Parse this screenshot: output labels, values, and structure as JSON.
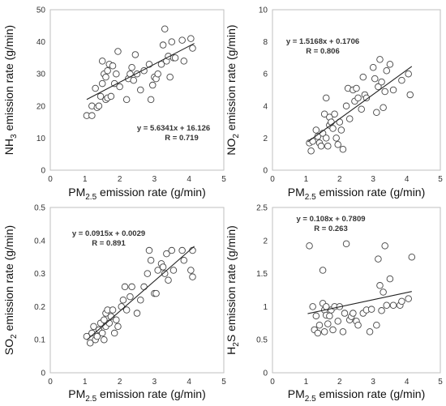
{
  "chart_data": [
    {
      "type": "scatter",
      "xlabel": "PM2.5 emission rate (g/min)",
      "ylabel": "NH3 emission rate (g/min)",
      "xlabel_parts": [
        "PM",
        "2.5",
        " emission rate (g/min)"
      ],
      "ylabel_parts": [
        "NH",
        "3",
        " emission rate (g/min)"
      ],
      "xlim": [
        0,
        5
      ],
      "ylim": [
        0,
        50
      ],
      "xticks": [
        0,
        1,
        2,
        3,
        4,
        5
      ],
      "yticks": [
        0,
        10,
        20,
        30,
        40,
        50
      ],
      "trendline": {
        "slope": 5.6341,
        "intercept": 16.126,
        "x_range": [
          1.05,
          4.15
        ]
      },
      "equation": "y = 5.6341x + 16.126",
      "r_label": "R = 0.719",
      "points": [
        [
          1.05,
          17
        ],
        [
          1.2,
          17
        ],
        [
          1.2,
          20
        ],
        [
          1.3,
          25.5
        ],
        [
          1.35,
          19.5
        ],
        [
          1.4,
          20
        ],
        [
          1.45,
          23
        ],
        [
          1.5,
          27
        ],
        [
          1.5,
          34
        ],
        [
          1.55,
          30
        ],
        [
          1.6,
          29
        ],
        [
          1.6,
          22
        ],
        [
          1.65,
          22.5
        ],
        [
          1.65,
          31
        ],
        [
          1.7,
          33
        ],
        [
          1.75,
          23
        ],
        [
          1.8,
          32.5
        ],
        [
          1.85,
          27
        ],
        [
          1.9,
          30
        ],
        [
          1.95,
          37
        ],
        [
          2.0,
          26
        ],
        [
          2.2,
          22
        ],
        [
          2.25,
          28.5
        ],
        [
          2.3,
          30
        ],
        [
          2.35,
          32
        ],
        [
          2.4,
          28
        ],
        [
          2.45,
          36
        ],
        [
          2.5,
          30
        ],
        [
          2.6,
          25
        ],
        [
          2.7,
          31
        ],
        [
          2.85,
          33
        ],
        [
          2.9,
          22
        ],
        [
          2.95,
          26.5
        ],
        [
          3.0,
          29
        ],
        [
          3.05,
          28.5
        ],
        [
          3.1,
          30
        ],
        [
          3.2,
          33
        ],
        [
          3.25,
          39
        ],
        [
          3.3,
          44
        ],
        [
          3.35,
          34
        ],
        [
          3.4,
          35.5
        ],
        [
          3.45,
          29
        ],
        [
          3.5,
          40
        ],
        [
          3.55,
          35
        ],
        [
          3.6,
          35
        ],
        [
          3.8,
          40.5
        ],
        [
          3.85,
          34
        ],
        [
          4.05,
          41
        ],
        [
          4.1,
          38
        ]
      ]
    },
    {
      "type": "scatter",
      "xlabel": "PM2.5 emission rate (g/min)",
      "ylabel": "NO2 emission rate (g/min)",
      "xlabel_parts": [
        "PM",
        "2.5",
        " emission rate (g/min)"
      ],
      "ylabel_parts": [
        "NO",
        "2",
        " emission rate (g/min)"
      ],
      "xlim": [
        0,
        5
      ],
      "ylim": [
        0,
        10
      ],
      "xticks": [
        0,
        1,
        2,
        3,
        4,
        5
      ],
      "yticks": [
        0,
        2,
        4,
        6,
        8,
        10
      ],
      "trendline": {
        "slope": 1.5168,
        "intercept": 0.1706,
        "x_range": [
          1.05,
          4.15
        ]
      },
      "equation": "y = 1.5168x + 0.1706",
      "r_label": "R = 0.806",
      "points": [
        [
          1.1,
          1.7
        ],
        [
          1.15,
          1.2
        ],
        [
          1.2,
          1.8
        ],
        [
          1.3,
          2.5
        ],
        [
          1.35,
          2.1
        ],
        [
          1.4,
          1.7
        ],
        [
          1.45,
          1.5
        ],
        [
          1.5,
          2.3
        ],
        [
          1.55,
          3.5
        ],
        [
          1.6,
          4.5
        ],
        [
          1.6,
          2.0
        ],
        [
          1.65,
          1.5
        ],
        [
          1.7,
          2.8
        ],
        [
          1.7,
          3.3
        ],
        [
          1.75,
          3.0
        ],
        [
          1.8,
          2.6
        ],
        [
          1.85,
          3.5
        ],
        [
          1.9,
          2.0
        ],
        [
          1.95,
          1.6
        ],
        [
          2.0,
          3.0
        ],
        [
          2.05,
          2.5
        ],
        [
          2.1,
          1.3
        ],
        [
          2.2,
          4.0
        ],
        [
          2.25,
          5.1
        ],
        [
          2.3,
          3.2
        ],
        [
          2.4,
          5.0
        ],
        [
          2.45,
          4.3
        ],
        [
          2.5,
          5.1
        ],
        [
          2.55,
          4.5
        ],
        [
          2.65,
          3.8
        ],
        [
          2.7,
          5.8
        ],
        [
          2.75,
          4.7
        ],
        [
          2.8,
          4.5
        ],
        [
          3.0,
          6.4
        ],
        [
          3.05,
          5.7
        ],
        [
          3.1,
          3.6
        ],
        [
          3.15,
          5.2
        ],
        [
          3.2,
          6.9
        ],
        [
          3.25,
          5.5
        ],
        [
          3.3,
          3.9
        ],
        [
          3.35,
          4.9
        ],
        [
          3.4,
          6.2
        ],
        [
          3.5,
          6.6
        ],
        [
          3.6,
          5.0
        ],
        [
          3.85,
          5.6
        ],
        [
          4.05,
          6.0
        ],
        [
          4.1,
          4.7
        ]
      ]
    },
    {
      "type": "scatter",
      "xlabel": "PM2.5 emission rate (g/min)",
      "ylabel": "SO2 emission rate (g/min)",
      "xlabel_parts": [
        "PM",
        "2.5",
        " emission rate (g/min)"
      ],
      "ylabel_parts": [
        "SO",
        "2",
        " emission rate (g/min)"
      ],
      "xlim": [
        0,
        5
      ],
      "ylim": [
        0,
        0.5
      ],
      "xticks": [
        0,
        1,
        2,
        3,
        4,
        5
      ],
      "yticks": [
        0,
        0.1,
        0.2,
        0.3,
        0.4,
        0.5
      ],
      "ytick_labels": [
        "0",
        "0.1",
        "0.2",
        "0.3",
        "0.4",
        "0.5"
      ],
      "trendline": {
        "slope": 0.0915,
        "intercept": 0.0029,
        "x_range": [
          1.05,
          4.15
        ]
      },
      "equation": "y = 0.0915x + 0.0029",
      "r_label": "R = 0.891",
      "points": [
        [
          1.05,
          0.11
        ],
        [
          1.15,
          0.09
        ],
        [
          1.2,
          0.12
        ],
        [
          1.25,
          0.14
        ],
        [
          1.3,
          0.1
        ],
        [
          1.35,
          0.11
        ],
        [
          1.4,
          0.13
        ],
        [
          1.45,
          0.15
        ],
        [
          1.5,
          0.12
        ],
        [
          1.55,
          0.16
        ],
        [
          1.55,
          0.1
        ],
        [
          1.6,
          0.18
        ],
        [
          1.6,
          0.14
        ],
        [
          1.65,
          0.19
        ],
        [
          1.7,
          0.15
        ],
        [
          1.75,
          0.17
        ],
        [
          1.8,
          0.19
        ],
        [
          1.85,
          0.12
        ],
        [
          1.9,
          0.16
        ],
        [
          1.95,
          0.14
        ],
        [
          2.05,
          0.2
        ],
        [
          2.1,
          0.22
        ],
        [
          2.15,
          0.26
        ],
        [
          2.2,
          0.19
        ],
        [
          2.3,
          0.23
        ],
        [
          2.35,
          0.26
        ],
        [
          2.5,
          0.18
        ],
        [
          2.6,
          0.22
        ],
        [
          2.7,
          0.26
        ],
        [
          2.8,
          0.3
        ],
        [
          2.85,
          0.37
        ],
        [
          2.9,
          0.34
        ],
        [
          3.0,
          0.24
        ],
        [
          3.05,
          0.24
        ],
        [
          3.1,
          0.31
        ],
        [
          3.2,
          0.33
        ],
        [
          3.25,
          0.32
        ],
        [
          3.3,
          0.3
        ],
        [
          3.35,
          0.36
        ],
        [
          3.4,
          0.28
        ],
        [
          3.5,
          0.37
        ],
        [
          3.55,
          0.31
        ],
        [
          3.8,
          0.37
        ],
        [
          3.85,
          0.34
        ],
        [
          4.05,
          0.31
        ],
        [
          4.1,
          0.37
        ],
        [
          4.1,
          0.29
        ]
      ]
    },
    {
      "type": "scatter",
      "xlabel": "PM2.5 emission rate (g/min)",
      "ylabel": "H2S emission rate (g/min)",
      "xlabel_parts": [
        "PM",
        "2.5",
        " emission rate (g/min)"
      ],
      "ylabel_parts": [
        "H",
        "2",
        "S emission rate (g/min)"
      ],
      "xlim": [
        0,
        5
      ],
      "ylim": [
        0,
        2.5
      ],
      "xticks": [
        0,
        1,
        2,
        3,
        4,
        5
      ],
      "yticks": [
        0,
        0.5,
        1,
        1.5,
        2,
        2.5
      ],
      "trendline": {
        "slope": 0.108,
        "intercept": 0.7809,
        "x_range": [
          1.05,
          4.15
        ]
      },
      "equation": "y = 0.108x + 0.7809",
      "r_label": "R = 0.263",
      "points": [
        [
          1.1,
          1.92
        ],
        [
          1.2,
          1.0
        ],
        [
          1.25,
          0.65
        ],
        [
          1.3,
          0.86
        ],
        [
          1.35,
          0.6
        ],
        [
          1.4,
          0.72
        ],
        [
          1.5,
          1.55
        ],
        [
          1.5,
          1.05
        ],
        [
          1.55,
          0.62
        ],
        [
          1.55,
          0.95
        ],
        [
          1.6,
          0.87
        ],
        [
          1.6,
          1.0
        ],
        [
          1.65,
          0.74
        ],
        [
          1.7,
          0.86
        ],
        [
          1.75,
          0.95
        ],
        [
          1.8,
          0.65
        ],
        [
          1.85,
          1.0
        ],
        [
          1.95,
          0.78
        ],
        [
          2.0,
          1.0
        ],
        [
          2.1,
          0.62
        ],
        [
          2.15,
          0.9
        ],
        [
          2.2,
          1.95
        ],
        [
          2.3,
          0.8
        ],
        [
          2.35,
          0.85
        ],
        [
          2.4,
          0.9
        ],
        [
          2.5,
          0.78
        ],
        [
          2.55,
          0.72
        ],
        [
          2.7,
          0.9
        ],
        [
          2.8,
          0.95
        ],
        [
          2.9,
          0.62
        ],
        [
          2.95,
          0.96
        ],
        [
          3.1,
          0.72
        ],
        [
          3.15,
          1.72
        ],
        [
          3.2,
          1.32
        ],
        [
          3.25,
          0.94
        ],
        [
          3.3,
          1.22
        ],
        [
          3.35,
          1.92
        ],
        [
          3.4,
          1.02
        ],
        [
          3.5,
          1.42
        ],
        [
          3.6,
          1.02
        ],
        [
          3.8,
          1.02
        ],
        [
          3.85,
          1.08
        ],
        [
          4.05,
          1.12
        ],
        [
          4.15,
          1.75
        ]
      ]
    }
  ]
}
